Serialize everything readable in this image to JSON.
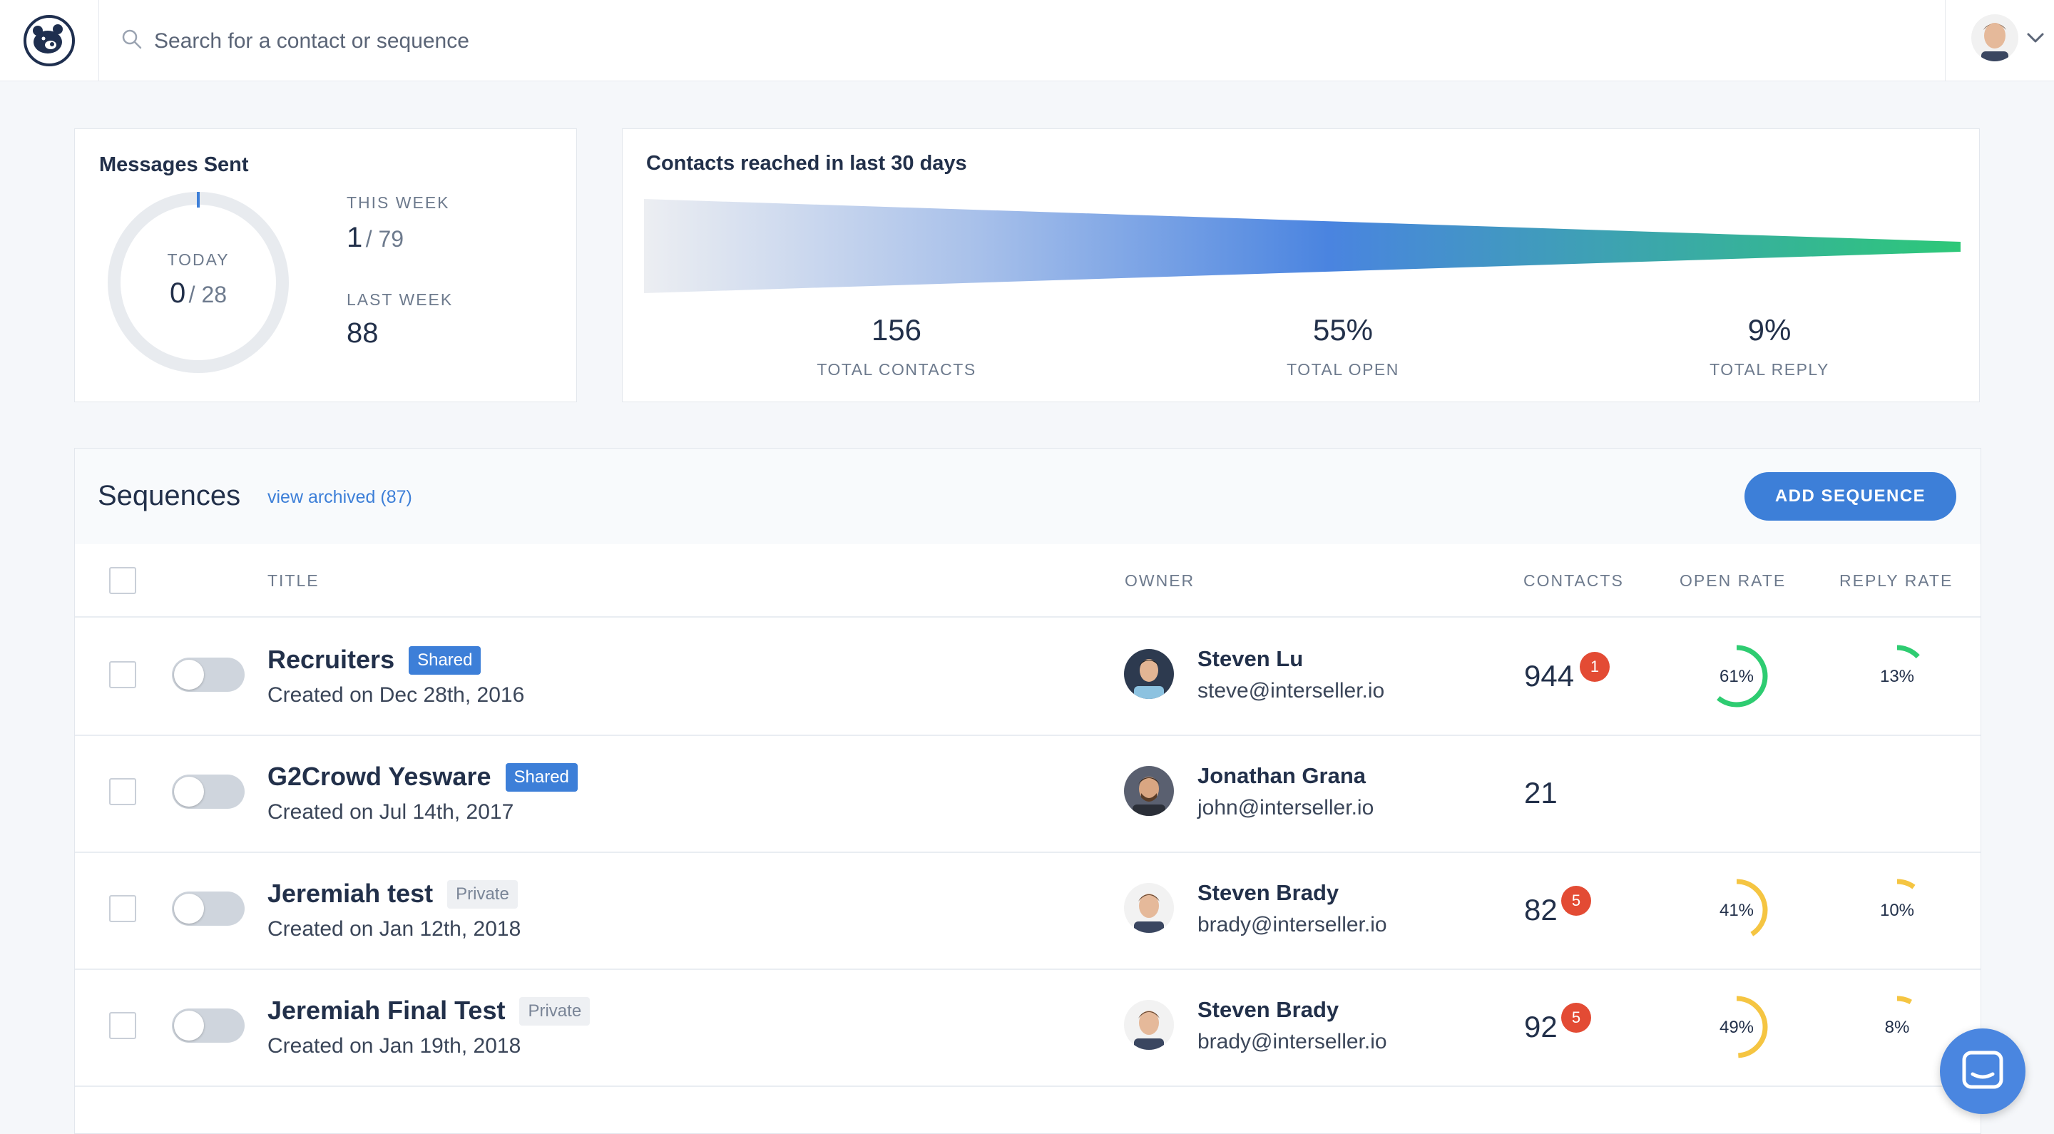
{
  "search": {
    "placeholder": "Search for a contact or sequence"
  },
  "messages_sent": {
    "title": "Messages Sent",
    "today_label": "TODAY",
    "today_value": "0",
    "today_total": "/ 28",
    "this_week_label": "THIS WEEK",
    "this_week_value": "1",
    "this_week_total": "/ 79",
    "last_week_label": "LAST WEEK",
    "last_week_value": "88"
  },
  "contacts_reached": {
    "title": "Contacts reached in last 30 days",
    "stats": [
      {
        "value": "156",
        "label": "TOTAL CONTACTS"
      },
      {
        "value": "55%",
        "label": "TOTAL OPEN"
      },
      {
        "value": "9%",
        "label": "TOTAL REPLY"
      }
    ]
  },
  "sequences": {
    "title": "Sequences",
    "archived_link": "view archived (87)",
    "add_button": "ADD SEQUENCE",
    "columns": {
      "title": "TITLE",
      "owner": "OWNER",
      "contacts": "CONTACTS",
      "open_rate": "OPEN RATE",
      "reply_rate": "REPLY RATE"
    },
    "rows": [
      {
        "title": "Recruiters",
        "badge": "Shared",
        "created": "Created on Dec 28th, 2016",
        "owner_name": "Steven Lu",
        "owner_email": "steve@interseller.io",
        "contacts": "944",
        "notifications": "1",
        "open_rate": "61%",
        "open_fraction": 0.61,
        "reply_rate": "13%",
        "reply_fraction": 0.13
      },
      {
        "title": "G2Crowd Yesware",
        "badge": "Shared",
        "created": "Created on Jul 14th, 2017",
        "owner_name": "Jonathan Grana",
        "owner_email": "john@interseller.io",
        "contacts": "21"
      },
      {
        "title": "Jeremiah test",
        "badge": "Private",
        "created": "Created on Jan 12th, 2018",
        "owner_name": "Steven Brady",
        "owner_email": "brady@interseller.io",
        "contacts": "82",
        "notifications": "5",
        "open_rate": "41%",
        "open_fraction": 0.41,
        "reply_rate": "10%",
        "reply_fraction": 0.1
      },
      {
        "title": "Jeremiah Final Test",
        "badge": "Private",
        "created": "Created on Jan 19th, 2018",
        "owner_name": "Steven Brady",
        "owner_email": "brady@interseller.io",
        "contacts": "92",
        "notifications": "5",
        "open_rate": "49%",
        "open_fraction": 0.49,
        "reply_rate": "8%",
        "reply_fraction": 0.08
      }
    ]
  },
  "colors": {
    "accent": "#3d7fd8",
    "open_rate_high": "#2ecc71",
    "open_rate_mid": "#f5c542",
    "notification": "#e34b34"
  }
}
